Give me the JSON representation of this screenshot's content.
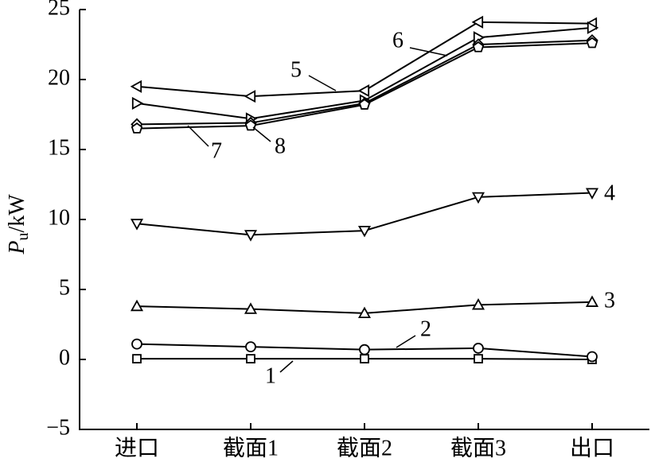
{
  "chart_data": {
    "type": "line",
    "y_label": {
      "symbol": "P",
      "subscript": "u",
      "unit": "/kW"
    },
    "categories": [
      "进口",
      "截面1",
      "截面2",
      "截面3",
      "出口"
    ],
    "ylim": [
      -5,
      25
    ],
    "yticks": [
      {
        "value": -5,
        "label": "−5"
      },
      0,
      5,
      10,
      15,
      20,
      25
    ],
    "series": [
      {
        "name": "1",
        "color": "#000000",
        "marker": "square",
        "values": [
          0.05,
          0.05,
          0.05,
          0.05,
          0.0
        ]
      },
      {
        "name": "2",
        "color": "#000000",
        "marker": "circle",
        "values": [
          1.1,
          0.9,
          0.7,
          0.8,
          0.2
        ]
      },
      {
        "name": "3",
        "color": "#000000",
        "marker": "triangle-up",
        "values": [
          3.8,
          3.6,
          3.3,
          3.9,
          4.1
        ]
      },
      {
        "name": "4",
        "color": "#000000",
        "marker": "triangle-down",
        "values": [
          9.7,
          8.9,
          9.2,
          11.6,
          11.9
        ]
      },
      {
        "name": "5",
        "color": "#000000",
        "marker": "triangle-left",
        "values": [
          19.5,
          18.8,
          19.2,
          24.1,
          24.0
        ]
      },
      {
        "name": "6",
        "color": "#000000",
        "marker": "triangle-right",
        "values": [
          18.3,
          17.2,
          18.5,
          23.0,
          23.7
        ]
      },
      {
        "name": "7",
        "color": "#000000",
        "marker": "diamond",
        "values": [
          16.8,
          16.9,
          18.3,
          22.5,
          22.8
        ]
      },
      {
        "name": "8",
        "color": "#000000",
        "marker": "pentagon",
        "values": [
          16.5,
          16.7,
          18.2,
          22.3,
          22.6
        ]
      }
    ]
  }
}
